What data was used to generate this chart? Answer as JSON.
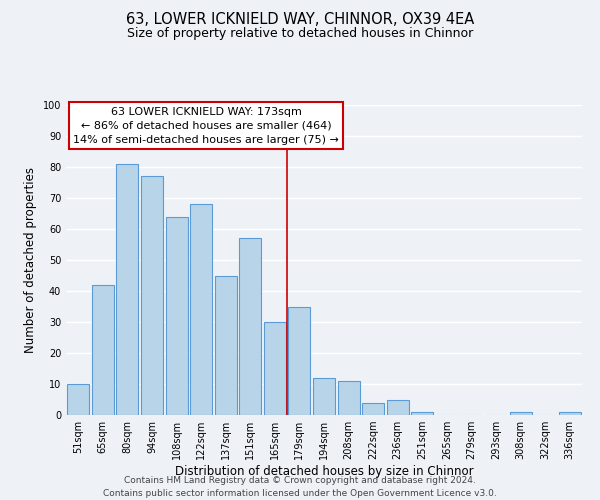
{
  "title": "63, LOWER ICKNIELD WAY, CHINNOR, OX39 4EA",
  "subtitle": "Size of property relative to detached houses in Chinnor",
  "xlabel": "Distribution of detached houses by size in Chinnor",
  "ylabel": "Number of detached properties",
  "bar_labels": [
    "51sqm",
    "65sqm",
    "80sqm",
    "94sqm",
    "108sqm",
    "122sqm",
    "137sqm",
    "151sqm",
    "165sqm",
    "179sqm",
    "194sqm",
    "208sqm",
    "222sqm",
    "236sqm",
    "251sqm",
    "265sqm",
    "279sqm",
    "293sqm",
    "308sqm",
    "322sqm",
    "336sqm"
  ],
  "bar_values": [
    10,
    42,
    81,
    77,
    64,
    68,
    45,
    57,
    30,
    35,
    12,
    11,
    4,
    5,
    1,
    0,
    0,
    0,
    1,
    0,
    1
  ],
  "bar_color": "#b8d4e8",
  "bar_edge_color": "#5b9bd5",
  "property_line_x": 8.5,
  "annotation_line0": "63 LOWER ICKNIELD WAY: 173sqm",
  "annotation_line1": "← 86% of detached houses are smaller (464)",
  "annotation_line2": "14% of semi-detached houses are larger (75) →",
  "annotation_box_color": "#ffffff",
  "annotation_box_edge": "#cc0000",
  "vline_color": "#cc0000",
  "ylim": [
    0,
    100
  ],
  "yticks": [
    0,
    10,
    20,
    30,
    40,
    50,
    60,
    70,
    80,
    90,
    100
  ],
  "footer_line1": "Contains HM Land Registry data © Crown copyright and database right 2024.",
  "footer_line2": "Contains public sector information licensed under the Open Government Licence v3.0.",
  "bg_color": "#eef2f7",
  "plot_bg_color": "#eef2f7",
  "grid_color": "#ffffff",
  "title_fontsize": 10.5,
  "subtitle_fontsize": 9,
  "axis_label_fontsize": 8.5,
  "tick_fontsize": 7,
  "footer_fontsize": 6.5,
  "annotation_fontsize": 8
}
